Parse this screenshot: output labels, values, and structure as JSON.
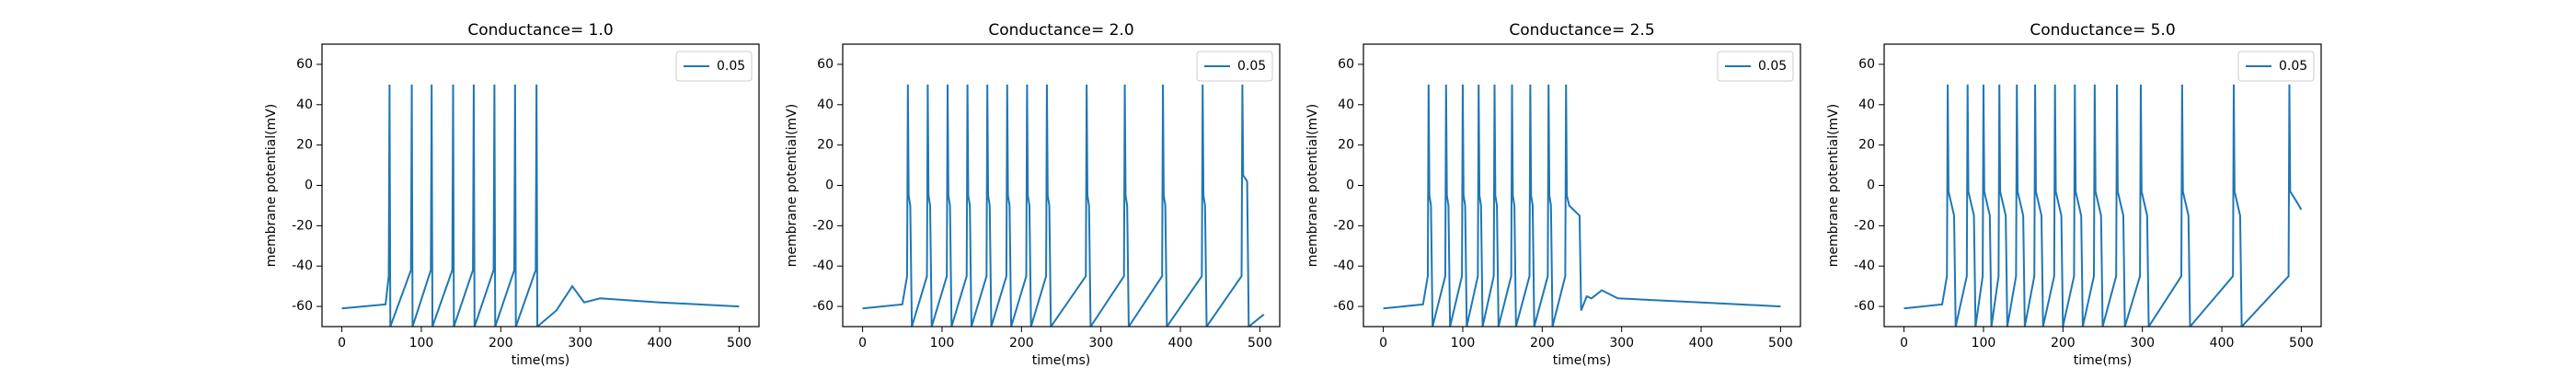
{
  "chart_data": [
    {
      "type": "line",
      "title": "Conductance= 1.0",
      "xlabel": "time(ms)",
      "ylabel": "membrane potential(mV)",
      "x": [
        0,
        55,
        59,
        60,
        61,
        87,
        88,
        89,
        112,
        113,
        114,
        139,
        140,
        141,
        165,
        166,
        167,
        191,
        192,
        193,
        217,
        218,
        219,
        244,
        245,
        246,
        270,
        290,
        305,
        325,
        400,
        500
      ],
      "series": [
        {
          "name": "0.05",
          "color": "#1f77b4",
          "values": [
            -61,
            -59,
            -45,
            50,
            -70,
            -42,
            50,
            -70,
            -42,
            50,
            -70,
            -42,
            50,
            -70,
            -42,
            50,
            -70,
            -42,
            50,
            -70,
            -42,
            50,
            -70,
            -42,
            50,
            -70,
            -62,
            -50,
            -58,
            -56,
            -58,
            -60
          ]
        }
      ],
      "xlim": [
        -25,
        525
      ],
      "ylim": [
        -70,
        70
      ],
      "xticks": [
        0,
        100,
        200,
        300,
        400,
        500
      ],
      "yticks": [
        -60,
        -40,
        -20,
        0,
        20,
        40,
        60
      ],
      "legend": "upper right"
    },
    {
      "type": "line",
      "title": "Conductance= 2.0",
      "xlabel": "time(ms)",
      "ylabel": "membrane potential(mV)",
      "x": [
        0,
        50,
        56,
        57,
        58,
        60,
        62,
        81,
        82,
        83,
        85,
        87,
        106,
        107,
        108,
        110,
        112,
        131,
        132,
        133,
        135,
        137,
        156,
        157,
        158,
        160,
        162,
        181,
        182,
        183,
        185,
        187,
        206,
        207,
        208,
        210,
        212,
        231,
        232,
        233,
        235,
        237,
        281,
        282,
        283,
        285,
        287,
        329,
        330,
        331,
        333,
        335,
        377,
        378,
        379,
        381,
        383,
        427,
        428,
        429,
        431,
        433,
        477,
        478,
        479,
        484,
        486,
        505
      ],
      "series": [
        {
          "name": "0.05",
          "color": "#1f77b4",
          "values": [
            -61,
            -59,
            -45,
            50,
            -5,
            -10,
            -70,
            -45,
            50,
            -5,
            -10,
            -70,
            -45,
            50,
            -5,
            -10,
            -70,
            -45,
            50,
            -5,
            -10,
            -70,
            -45,
            50,
            -5,
            -10,
            -70,
            -45,
            50,
            -5,
            -10,
            -70,
            -45,
            50,
            -5,
            -10,
            -70,
            -45,
            50,
            -5,
            -10,
            -70,
            -45,
            50,
            -5,
            -10,
            -70,
            -45,
            50,
            -5,
            -10,
            -70,
            -45,
            50,
            -5,
            -10,
            -70,
            -45,
            50,
            -5,
            -10,
            -70,
            -45,
            50,
            5,
            2,
            -70,
            -64
          ]
        }
      ],
      "xlim": [
        -25,
        525
      ],
      "ylim": [
        -70,
        70
      ],
      "xticks": [
        0,
        100,
        200,
        300,
        400,
        500
      ],
      "yticks": [
        -60,
        -40,
        -20,
        0,
        20,
        40,
        60
      ],
      "legend": "upper right"
    },
    {
      "type": "line",
      "title": "Conductance= 2.5",
      "xlabel": "time(ms)",
      "ylabel": "membrane potential(mV)",
      "x": [
        0,
        50,
        56,
        57,
        58,
        60,
        62,
        78,
        79,
        80,
        82,
        84,
        99,
        100,
        101,
        103,
        105,
        119,
        120,
        121,
        123,
        125,
        139,
        140,
        141,
        143,
        145,
        161,
        162,
        163,
        165,
        167,
        184,
        185,
        186,
        188,
        190,
        207,
        208,
        209,
        211,
        213,
        229,
        230,
        231,
        234,
        247,
        249,
        256,
        262,
        275,
        295,
        400,
        500
      ],
      "series": [
        {
          "name": "0.05",
          "color": "#1f77b4",
          "values": [
            -61,
            -59,
            -45,
            50,
            -5,
            -10,
            -70,
            -45,
            50,
            -5,
            -10,
            -70,
            -45,
            50,
            -5,
            -10,
            -70,
            -45,
            50,
            -5,
            -10,
            -70,
            -45,
            50,
            -5,
            -10,
            -70,
            -45,
            50,
            -5,
            -10,
            -70,
            -45,
            50,
            -5,
            -10,
            -70,
            -45,
            50,
            -5,
            -10,
            -70,
            -45,
            50,
            -5,
            -10,
            -15,
            -62,
            -55,
            -56,
            -52,
            -56,
            -58,
            -60
          ]
        }
      ],
      "xlim": [
        -25,
        525
      ],
      "ylim": [
        -70,
        70
      ],
      "xticks": [
        0,
        100,
        200,
        300,
        400,
        500
      ],
      "yticks": [
        -60,
        -40,
        -20,
        0,
        20,
        40,
        60
      ],
      "legend": "upper right"
    },
    {
      "type": "line",
      "title": "Conductance= 5.0",
      "xlabel": "time(ms)",
      "ylabel": "membrane potential(mV)",
      "x": [
        0,
        48,
        54,
        55,
        56,
        63,
        65,
        79,
        80,
        81,
        88,
        90,
        99,
        100,
        101,
        108,
        110,
        119,
        120,
        121,
        128,
        130,
        141,
        142,
        143,
        150,
        152,
        164,
        165,
        166,
        173,
        175,
        189,
        190,
        191,
        198,
        200,
        214,
        215,
        216,
        223,
        225,
        239,
        240,
        241,
        248,
        250,
        267,
        268,
        269,
        276,
        278,
        297,
        298,
        299,
        306,
        308,
        349,
        350,
        351,
        358,
        360,
        414,
        415,
        416,
        423,
        425,
        484,
        485,
        486,
        494,
        500
      ],
      "series": [
        {
          "name": "0.05",
          "color": "#1f77b4",
          "values": [
            -61,
            -59,
            -45,
            50,
            -3,
            -15,
            -70,
            -45,
            50,
            -3,
            -15,
            -70,
            -45,
            50,
            -3,
            -15,
            -70,
            -45,
            50,
            -3,
            -15,
            -70,
            -45,
            50,
            -3,
            -15,
            -70,
            -45,
            50,
            -3,
            -15,
            -70,
            -45,
            50,
            -3,
            -15,
            -70,
            -45,
            50,
            -3,
            -15,
            -70,
            -45,
            50,
            -3,
            -15,
            -70,
            -45,
            50,
            -3,
            -15,
            -70,
            -45,
            50,
            -3,
            -15,
            -70,
            -45,
            50,
            -3,
            -15,
            -70,
            -45,
            50,
            -3,
            -15,
            -70,
            -45,
            50,
            -3,
            -8,
            -12
          ]
        }
      ],
      "xlim": [
        -25,
        525
      ],
      "ylim": [
        -70,
        70
      ],
      "xticks": [
        0,
        100,
        200,
        300,
        400,
        500
      ],
      "yticks": [
        -60,
        -40,
        -20,
        0,
        20,
        40,
        60
      ],
      "legend": "upper right"
    }
  ]
}
